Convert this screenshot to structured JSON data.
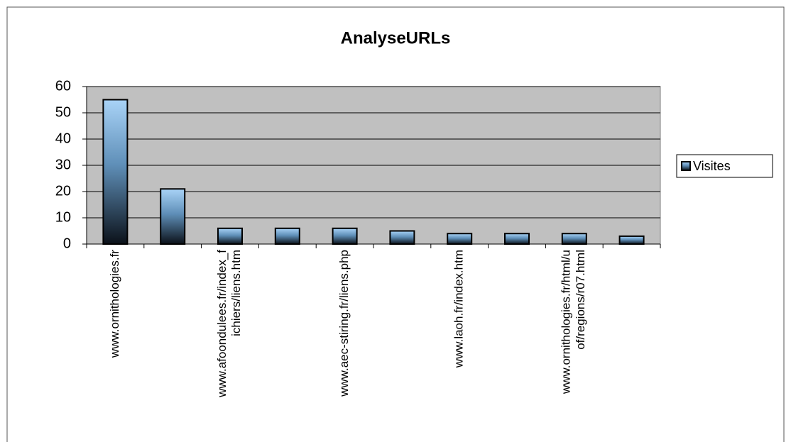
{
  "chart_data": {
    "type": "bar",
    "title": "AnalyseURLs",
    "categories": [
      "www.ornithologies.fr",
      null,
      "www.afoondulees.fr/index_f\nichiers/liens.htm",
      null,
      "www.aec-stiring.fr/liens.php",
      null,
      "www.laoh.fr/index.htm",
      null,
      "www.ornithologies.fr/html/u\nof/regions/r07.html",
      null
    ],
    "series": [
      {
        "name": "Visites",
        "color": "#7fb2e0",
        "values": [
          55,
          21,
          6,
          6,
          6,
          5,
          4,
          4,
          4,
          3
        ]
      }
    ],
    "ylim": [
      0,
      60
    ],
    "yticks": [
      0,
      10,
      20,
      30,
      40,
      50,
      60
    ],
    "grid": true,
    "legend": "right"
  }
}
